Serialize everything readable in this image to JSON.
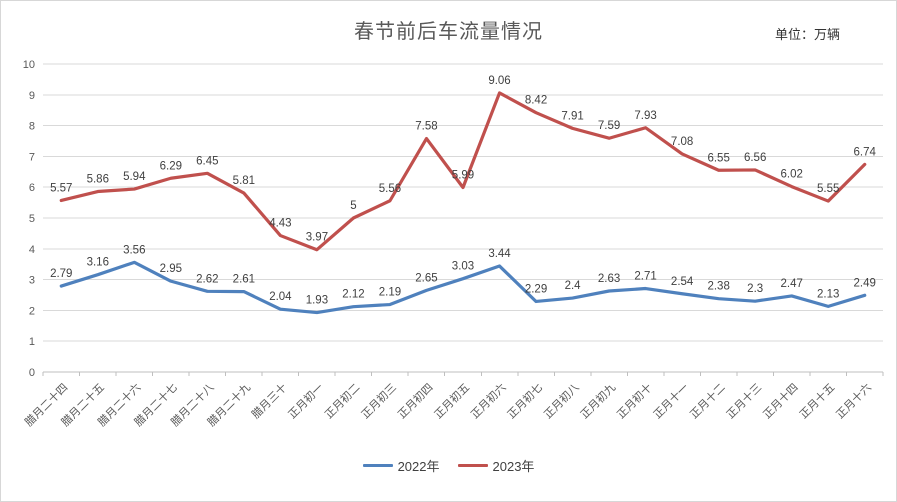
{
  "header": {
    "title": "春节前后车流量情况",
    "unit_label": "单位：万辆"
  },
  "chart_data": {
    "type": "line",
    "title": "春节前后车流量情况",
    "unit": "万辆",
    "categories": [
      "腊月二十四",
      "腊月二十五",
      "腊月二十六",
      "腊月二十七",
      "腊月二十八",
      "腊月二十九",
      "腊月三十",
      "正月初一",
      "正月初二",
      "正月初三",
      "正月初四",
      "正月初五",
      "正月初六",
      "正月初七",
      "正月初八",
      "正月初九",
      "正月初十",
      "正月十一",
      "正月十二",
      "正月十三",
      "正月十四",
      "正月十五",
      "正月十六"
    ],
    "series": [
      {
        "name": "2022年",
        "color": "#4F81BD",
        "values": [
          2.79,
          3.16,
          3.56,
          2.95,
          2.62,
          2.61,
          2.04,
          1.93,
          2.12,
          2.19,
          2.65,
          3.03,
          3.44,
          2.29,
          2.4,
          2.63,
          2.71,
          2.54,
          2.38,
          2.3,
          2.47,
          2.13,
          2.49
        ]
      },
      {
        "name": "2023年",
        "color": "#C0504D",
        "values": [
          5.57,
          5.86,
          5.94,
          6.29,
          6.45,
          5.81,
          4.43,
          3.97,
          5,
          5.56,
          7.58,
          5.99,
          9.06,
          8.42,
          7.91,
          7.59,
          7.93,
          7.08,
          6.55,
          6.56,
          6.02,
          5.55,
          6.74
        ]
      }
    ],
    "ylim": [
      0,
      10
    ],
    "y_ticks": [
      0,
      1,
      2,
      3,
      4,
      5,
      6,
      7,
      8,
      9,
      10
    ],
    "grid": true,
    "data_labels": true,
    "legend_position": "bottom",
    "x_label_rotation": 45
  },
  "colors": {
    "grid": "#d9d9d9",
    "axis": "#bfbfbf",
    "axis_label": "#595959",
    "data_label": "#404040",
    "title": "#595959",
    "frame_border": "#d7d7d7"
  }
}
